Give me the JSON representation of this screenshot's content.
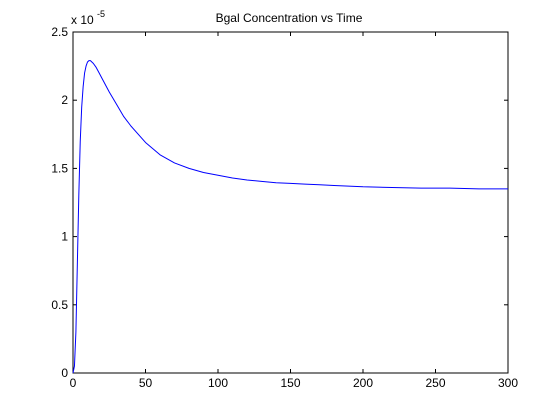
{
  "chart_data": {
    "type": "line",
    "title": "Bgal Concentration vs Time",
    "xlabel": "",
    "ylabel": "",
    "y_exponent_label": {
      "base": "x 10",
      "exp": "-5"
    },
    "xlim": [
      0,
      300
    ],
    "ylim": [
      0,
      2.5
    ],
    "x_ticks": [
      0,
      50,
      100,
      150,
      200,
      250,
      300
    ],
    "x_tick_labels": [
      "0",
      "50",
      "100",
      "150",
      "200",
      "250",
      "300"
    ],
    "y_ticks": [
      0,
      0.5,
      1,
      1.5,
      2,
      2.5
    ],
    "y_tick_labels": [
      "0",
      "0.5",
      "1",
      "1.5",
      "2",
      "2.5"
    ],
    "grid": false,
    "legend": "none",
    "series": [
      {
        "color": "#0000ff",
        "x": [
          0,
          1,
          2,
          3,
          4,
          5,
          6,
          7,
          8,
          9,
          10,
          11,
          12,
          14,
          16,
          18,
          20,
          25,
          30,
          35,
          40,
          50,
          60,
          70,
          80,
          90,
          100,
          110,
          120,
          130,
          140,
          150,
          160,
          170,
          180,
          190,
          200,
          220,
          240,
          260,
          280,
          300
        ],
        "y": [
          0,
          0.05,
          0.3,
          0.8,
          1.3,
          1.7,
          1.95,
          2.1,
          2.2,
          2.25,
          2.28,
          2.29,
          2.29,
          2.27,
          2.24,
          2.2,
          2.16,
          2.06,
          1.97,
          1.88,
          1.81,
          1.69,
          1.6,
          1.54,
          1.5,
          1.47,
          1.45,
          1.43,
          1.415,
          1.405,
          1.395,
          1.39,
          1.385,
          1.38,
          1.375,
          1.37,
          1.365,
          1.36,
          1.355,
          1.355,
          1.35,
          1.35
        ]
      }
    ]
  }
}
